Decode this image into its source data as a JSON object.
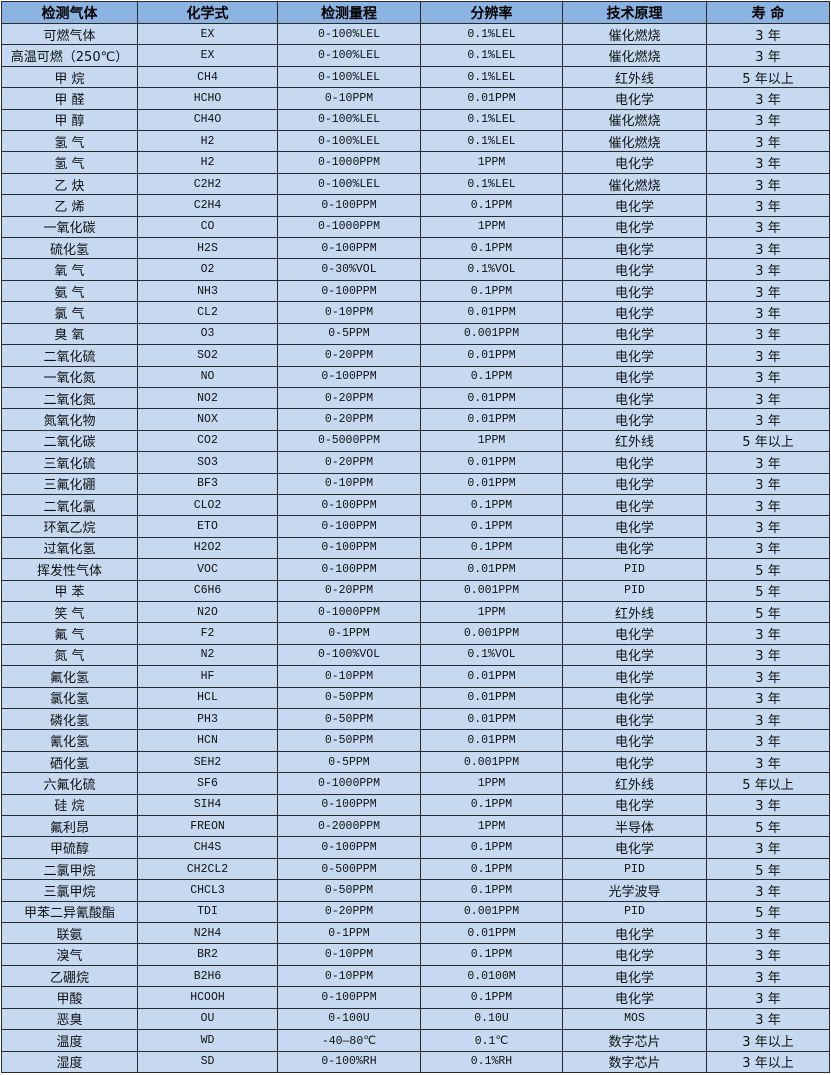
{
  "table": {
    "headers": [
      "检测气体",
      "化学式",
      "检测量程",
      "分辨率",
      "技术原理",
      "寿 命"
    ],
    "rows": [
      [
        "可燃气体",
        "EX",
        "0-100%LEL",
        "0.1%LEL",
        "催化燃烧",
        "3 年"
      ],
      [
        "高温可燃（250℃）",
        "EX",
        "0-100%LEL",
        "0.1%LEL",
        "催化燃烧",
        "3 年"
      ],
      [
        "甲 烷",
        "CH4",
        "0-100%LEL",
        "0.1%LEL",
        "红外线",
        "5 年以上"
      ],
      [
        "甲 醛",
        "HCHO",
        "0-10PPM",
        "0.01PPM",
        "电化学",
        "3 年"
      ],
      [
        "甲 醇",
        "CH4O",
        "0-100%LEL",
        "0.1%LEL",
        "催化燃烧",
        "3 年"
      ],
      [
        "氢 气",
        "H2",
        "0-100%LEL",
        "0.1%LEL",
        "催化燃烧",
        "3 年"
      ],
      [
        "氢 气",
        "H2",
        "0-1000PPM",
        "1PPM",
        "电化学",
        "3 年"
      ],
      [
        "乙 炔",
        "C2H2",
        "0-100%LEL",
        "0.1%LEL",
        "催化燃烧",
        "3 年"
      ],
      [
        "乙 烯",
        "C2H4",
        "0-100PPM",
        "0.1PPM",
        "电化学",
        "3 年"
      ],
      [
        "一氧化碳",
        "CO",
        "0-1000PPM",
        "1PPM",
        "电化学",
        "3 年"
      ],
      [
        "硫化氢",
        "H2S",
        "0-100PPM",
        "0.1PPM",
        "电化学",
        "3 年"
      ],
      [
        "氧 气",
        "O2",
        "0-30%VOL",
        "0.1%VOL",
        "电化学",
        "3 年"
      ],
      [
        "氨 气",
        "NH3",
        "0-100PPM",
        "0.1PPM",
        "电化学",
        "3 年"
      ],
      [
        "氯 气",
        "CL2",
        "0-10PPM",
        "0.01PPM",
        "电化学",
        "3 年"
      ],
      [
        "臭 氧",
        "O3",
        "0-5PPM",
        "0.001PPM",
        "电化学",
        "3 年"
      ],
      [
        "二氧化硫",
        "SO2",
        "0-20PPM",
        "0.01PPM",
        "电化学",
        "3 年"
      ],
      [
        "一氧化氮",
        "NO",
        "0-100PPM",
        "0.1PPM",
        "电化学",
        "3 年"
      ],
      [
        "二氧化氮",
        "NO2",
        "0-20PPM",
        "0.01PPM",
        "电化学",
        "3 年"
      ],
      [
        "氮氧化物",
        "NOX",
        "0-20PPM",
        "0.01PPM",
        "电化学",
        "3 年"
      ],
      [
        "二氧化碳",
        "CO2",
        "0-5000PPM",
        "1PPM",
        "红外线",
        "5 年以上"
      ],
      [
        "三氧化硫",
        "SO3",
        "0-20PPM",
        "0.01PPM",
        "电化学",
        "3 年"
      ],
      [
        "三氟化硼",
        "BF3",
        "0-10PPM",
        "0.01PPM",
        "电化学",
        "3 年"
      ],
      [
        "二氧化氯",
        "CLO2",
        "0-100PPM",
        "0.1PPM",
        "电化学",
        "3 年"
      ],
      [
        "环氧乙烷",
        "ETO",
        "0-100PPM",
        "0.1PPM",
        "电化学",
        "3 年"
      ],
      [
        "过氧化氢",
        "H2O2",
        "0-100PPM",
        "0.1PPM",
        "电化学",
        "3 年"
      ],
      [
        "挥发性气体",
        "VOC",
        "0-100PPM",
        "0.01PPM",
        "PID",
        "5 年"
      ],
      [
        "甲 苯",
        "C6H6",
        "0-20PPM",
        "0.001PPM",
        "PID",
        "5 年"
      ],
      [
        "笑 气",
        "N2O",
        "0-1000PPM",
        "1PPM",
        "红外线",
        "5 年"
      ],
      [
        "氟 气",
        "F2",
        "0-1PPM",
        "0.001PPM",
        "电化学",
        "3 年"
      ],
      [
        "氮 气",
        "N2",
        "0-100%VOL",
        "0.1%VOL",
        "电化学",
        "3 年"
      ],
      [
        "氟化氢",
        "HF",
        "0-10PPM",
        "0.01PPM",
        "电化学",
        "3 年"
      ],
      [
        "氯化氢",
        "HCL",
        "0-50PPM",
        "0.01PPM",
        "电化学",
        "3 年"
      ],
      [
        "磷化氢",
        "PH3",
        "0-50PPM",
        "0.01PPM",
        "电化学",
        "3 年"
      ],
      [
        "氰化氢",
        "HCN",
        "0-50PPM",
        "0.01PPM",
        "电化学",
        "3 年"
      ],
      [
        "硒化氢",
        "SEH2",
        "0-5PPM",
        "0.001PPM",
        "电化学",
        "3 年"
      ],
      [
        "六氟化硫",
        "SF6",
        "0-1000PPM",
        "1PPM",
        "红外线",
        "5 年以上"
      ],
      [
        "硅 烷",
        "SIH4",
        "0-100PPM",
        "0.1PPM",
        "电化学",
        "3 年"
      ],
      [
        "氟利昂",
        "FREON",
        "0-2000PPM",
        "1PPM",
        "半导体",
        "5 年"
      ],
      [
        "甲硫醇",
        "CH4S",
        "0-100PPM",
        "0.1PPM",
        "电化学",
        "3 年"
      ],
      [
        "二氯甲烷",
        "CH2CL2",
        "0-500PPM",
        "0.1PPM",
        "PID",
        "5 年"
      ],
      [
        "三氯甲烷",
        "CHCL3",
        "0-50PPM",
        "0.1PPM",
        "光学波导",
        "3 年"
      ],
      [
        "甲苯二异氰酸酯",
        "TDI",
        "0-20PPM",
        "0.001PPM",
        "PID",
        "5 年"
      ],
      [
        "联氨",
        "N2H4",
        "0-1PPM",
        "0.01PPM",
        "电化学",
        "3 年"
      ],
      [
        "溴气",
        "BR2",
        "0-10PPM",
        "0.1PPM",
        "电化学",
        "3 年"
      ],
      [
        "乙硼烷",
        "B2H6",
        "0-10PPM",
        "0.0100M",
        "电化学",
        "3 年"
      ],
      [
        "甲酸",
        "HCOOH",
        "0-100PPM",
        "0.1PPM",
        "电化学",
        "3 年"
      ],
      [
        "恶臭",
        "OU",
        "0-100U",
        "0.10U",
        "MOS",
        "3 年"
      ],
      [
        "温度",
        "WD",
        "-40—80℃",
        "0.1℃",
        "数字芯片",
        "3 年以上"
      ],
      [
        "湿度",
        "SD",
        "0-100%RH",
        "0.1%RH",
        "数字芯片",
        "3 年以上"
      ]
    ]
  },
  "colors": {
    "header_bg": "#8db3e2",
    "cell_bg": "#c6d9f1",
    "border": "#2b2b2b"
  }
}
